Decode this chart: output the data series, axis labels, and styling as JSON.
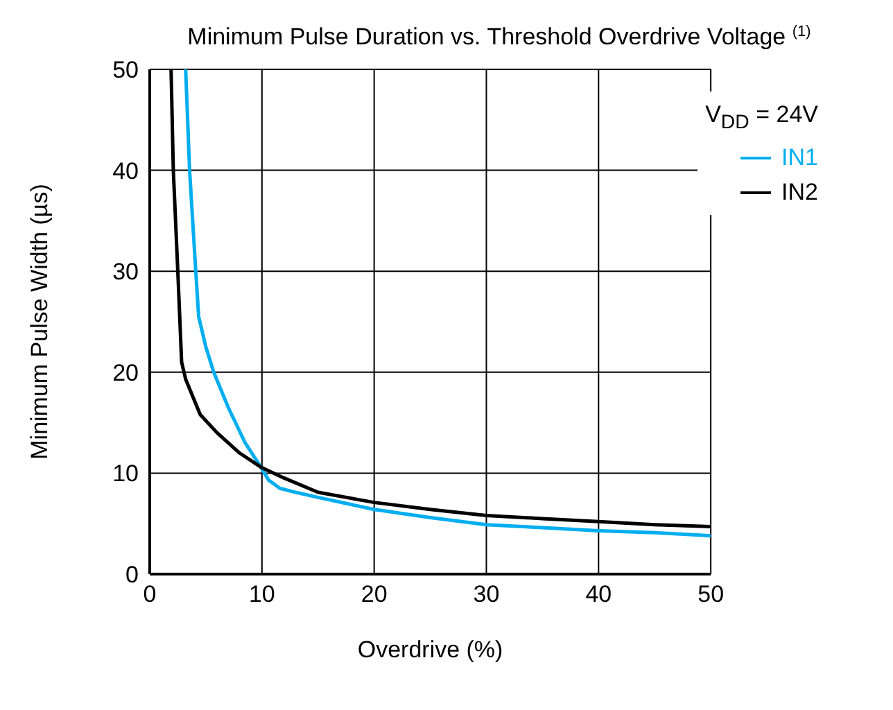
{
  "chart_data": {
    "type": "line",
    "title": "Minimum Pulse Duration vs. Threshold Overdrive Voltage $^{(1)}$",
    "xlabel": "Overdrive (%)",
    "ylabel": "Minimum Pulse Width (µs)",
    "legend_title": "V$_{DD}$ = 24V",
    "xlim": [
      0,
      50
    ],
    "ylim": [
      0,
      50
    ],
    "xticks": [
      0,
      10,
      20,
      30,
      40,
      50
    ],
    "yticks": [
      0,
      10,
      20,
      30,
      40,
      50
    ],
    "grid": true,
    "legend": "top right",
    "marker": "none",
    "line_style": "solid",
    "series": [
      {
        "name": "IN1",
        "color": "#00aeef",
        "x": [
          3.2,
          3.55,
          4.1,
          4.36,
          5.0,
          5.7,
          7.0,
          8.5,
          9.9,
          10.6,
          11.6,
          13,
          15,
          20,
          25,
          30,
          35,
          40,
          45,
          50
        ],
        "values": [
          50,
          40,
          30,
          25.5,
          22.5,
          20,
          16.5,
          13,
          10.6,
          9.3,
          8.5,
          8.1,
          7.6,
          6.4,
          5.6,
          4.9,
          4.6,
          4.3,
          4.1,
          3.8
        ]
      },
      {
        "name": "IN2",
        "color": "#000000",
        "x": [
          1.9,
          2.1,
          2.5,
          2.84,
          3.2,
          4.5,
          6,
          8,
          9.9,
          12,
          15,
          20,
          25,
          30,
          35,
          40,
          45,
          50
        ],
        "values": [
          50,
          40,
          30,
          21,
          19.3,
          15.8,
          14,
          12,
          10.6,
          9.5,
          8.1,
          7.1,
          6.4,
          5.8,
          5.5,
          5.2,
          4.9,
          4.7
        ]
      }
    ]
  }
}
